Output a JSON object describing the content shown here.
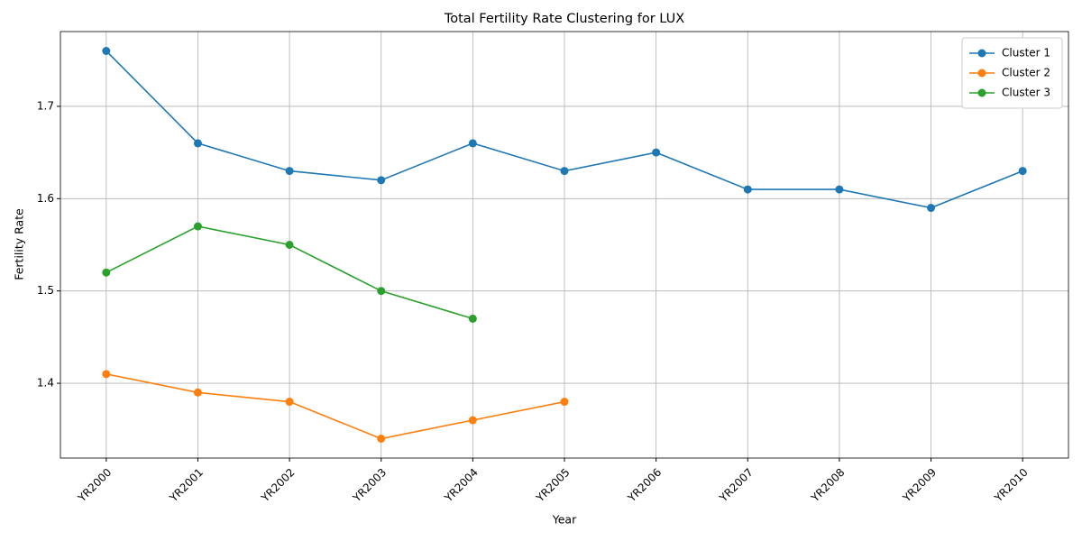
{
  "chart_data": {
    "type": "line",
    "title": "Total Fertility Rate Clustering for LUX",
    "x_label": "Year",
    "y_label": "Fertility Rate",
    "categories": [
      "YR2000",
      "YR2001",
      "YR2002",
      "YR2003",
      "YR2004",
      "YR2005",
      "YR2006",
      "YR2007",
      "YR2008",
      "YR2009",
      "YR2010"
    ],
    "series": [
      {
        "name": "Cluster 1",
        "color": "#1f77b4",
        "values": [
          1.76,
          1.66,
          1.63,
          1.62,
          1.66,
          1.63,
          1.65,
          1.61,
          1.61,
          1.59,
          1.63
        ]
      },
      {
        "name": "Cluster 2",
        "color": "#ff7f0e",
        "values": [
          1.41,
          1.39,
          1.38,
          1.34,
          1.36,
          1.38,
          null,
          null,
          null,
          null,
          null
        ]
      },
      {
        "name": "Cluster 3",
        "color": "#2ca02c",
        "values": [
          1.52,
          1.57,
          1.55,
          1.5,
          1.47,
          null,
          null,
          null,
          null,
          null,
          null
        ]
      }
    ],
    "ylim": [
      1.319,
      1.781
    ],
    "yticks": [
      1.4,
      1.5,
      1.6,
      1.7
    ],
    "grid": true,
    "legend": "upper right"
  }
}
